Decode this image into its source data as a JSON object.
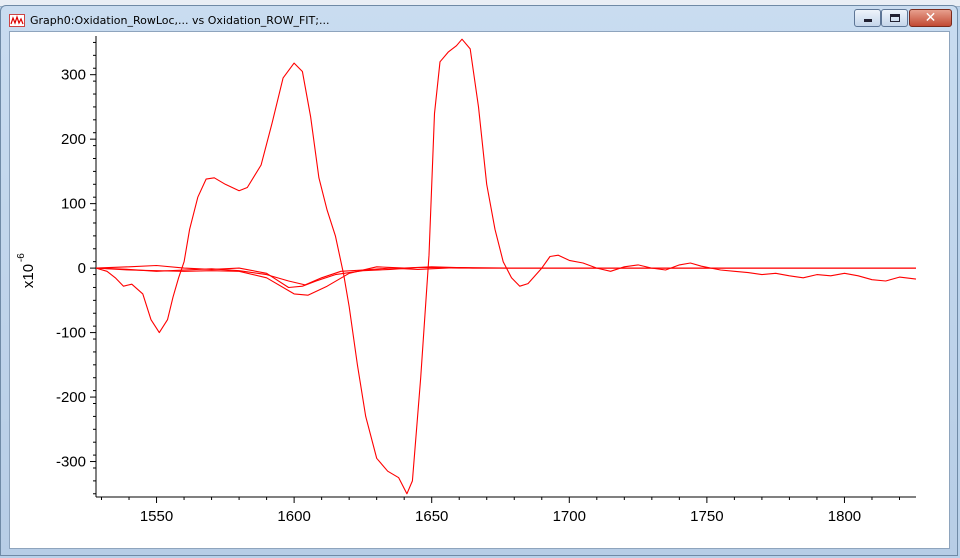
{
  "window": {
    "title": "Graph0:Oxidation_RowLoc,... vs Oxidation_ROW_FIT;...",
    "controls": {
      "minimize": "minimize",
      "maximize": "maximize",
      "close": "✕"
    }
  },
  "colors": {
    "trace": "#ff0000",
    "axis": "#000000",
    "background": "#ffffff"
  },
  "chart_data": {
    "type": "line",
    "title": "",
    "xlabel": "",
    "ylabel": "x10",
    "ylabel_exponent": "-6",
    "xlim": [
      1528,
      1826
    ],
    "ylim": [
      -355,
      360
    ],
    "xticks": [
      1550,
      1600,
      1650,
      1700,
      1750,
      1800
    ],
    "yticks": [
      300,
      200,
      100,
      0,
      -100,
      -200,
      -300
    ],
    "grid": false,
    "legend": "none",
    "series": [
      {
        "x": [
          1528,
          1532,
          1535,
          1538,
          1541,
          1545,
          1548,
          1551,
          1554,
          1556,
          1558,
          1560,
          1562,
          1565,
          1568,
          1571,
          1575,
          1580,
          1583,
          1588,
          1592,
          1596,
          1600,
          1603,
          1606,
          1609,
          1612,
          1615,
          1618,
          1620,
          1623,
          1626,
          1630,
          1634,
          1638,
          1641,
          1643,
          1646,
          1649,
          1651,
          1653,
          1656,
          1659,
          1661,
          1664,
          1667,
          1670,
          1673,
          1676,
          1679,
          1682,
          1685,
          1690,
          1693,
          1696,
          1700,
          1705,
          1710,
          1715,
          1720,
          1725,
          1730,
          1735,
          1740,
          1744,
          1748,
          1755,
          1760,
          1765,
          1770,
          1775,
          1780,
          1785,
          1790,
          1795,
          1800,
          1805,
          1810,
          1815,
          1820,
          1826
        ],
        "values": [
          0,
          -5,
          -15,
          -28,
          -25,
          -40,
          -80,
          -100,
          -80,
          -45,
          -15,
          10,
          60,
          110,
          138,
          140,
          130,
          120,
          125,
          160,
          225,
          295,
          318,
          305,
          235,
          140,
          90,
          50,
          -10,
          -60,
          -150,
          -230,
          -295,
          -315,
          -325,
          -350,
          -330,
          -170,
          20,
          240,
          320,
          335,
          345,
          355,
          340,
          250,
          130,
          60,
          10,
          -15,
          -28,
          -24,
          0,
          18,
          20,
          12,
          8,
          0,
          -5,
          2,
          5,
          0,
          -3,
          5,
          8,
          3,
          -3,
          -5,
          -7,
          -10,
          -8,
          -12,
          -15,
          -10,
          -12,
          -8,
          -12,
          -18,
          -20,
          -14,
          -17
        ]
      },
      {
        "x": [
          1528,
          1540,
          1550,
          1560,
          1570,
          1580,
          1590,
          1598,
          1603,
          1608,
          1615,
          1625,
          1635,
          1645,
          1660,
          1680,
          1700,
          1826
        ],
        "values": [
          0,
          2,
          4,
          0,
          -2,
          0,
          -8,
          -30,
          -28,
          -20,
          -10,
          -4,
          -2,
          1,
          0,
          0,
          0,
          0
        ]
      },
      {
        "x": [
          1528,
          1540,
          1550,
          1560,
          1570,
          1580,
          1590,
          1598,
          1604,
          1610,
          1617,
          1625,
          1635,
          1645,
          1660,
          1680,
          1700,
          1826
        ],
        "values": [
          0,
          -2,
          -5,
          -3,
          -1,
          -4,
          -10,
          -20,
          -26,
          -15,
          -5,
          -3,
          0,
          -2,
          1,
          0,
          0,
          0
        ]
      },
      {
        "x": [
          1528,
          1540,
          1550,
          1560,
          1570,
          1580,
          1590,
          1600,
          1605,
          1612,
          1620,
          1630,
          1640,
          1650,
          1665,
          1680,
          1700,
          1826
        ],
        "values": [
          0,
          -3,
          -4,
          -5,
          -4,
          -5,
          -15,
          -40,
          -42,
          -28,
          -8,
          2,
          0,
          2,
          0,
          0,
          0,
          0
        ]
      }
    ]
  }
}
